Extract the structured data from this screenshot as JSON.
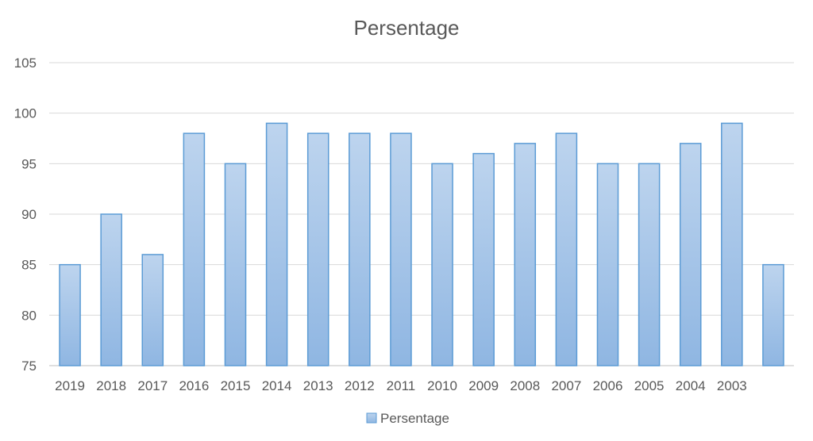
{
  "chart_data": {
    "type": "bar",
    "title": "Persentage",
    "xlabel": "",
    "ylabel": "",
    "categories": [
      "2019",
      "2018",
      "2017",
      "2016",
      "2015",
      "2014",
      "2013",
      "2012",
      "2011",
      "2010",
      "2009",
      "2008",
      "2007",
      "2006",
      "2005",
      "2004",
      "2003",
      ""
    ],
    "series": [
      {
        "name": "Persentage",
        "values": [
          85,
          90,
          86,
          98,
          95,
          99,
          98,
          98,
          98,
          95,
          96,
          97,
          98,
          95,
          95,
          97,
          99,
          85
        ]
      }
    ],
    "ylim": [
      75,
      105
    ],
    "yticks": [
      75,
      80,
      85,
      90,
      95,
      100,
      105
    ],
    "grid": true,
    "legend_position": "bottom",
    "colors": {
      "bar_top": "#bdd4ee",
      "bar_bottom": "#8fb6e2",
      "bar_border": "#5b9bd5",
      "grid": "#d9d9d9",
      "text": "#595959"
    }
  }
}
